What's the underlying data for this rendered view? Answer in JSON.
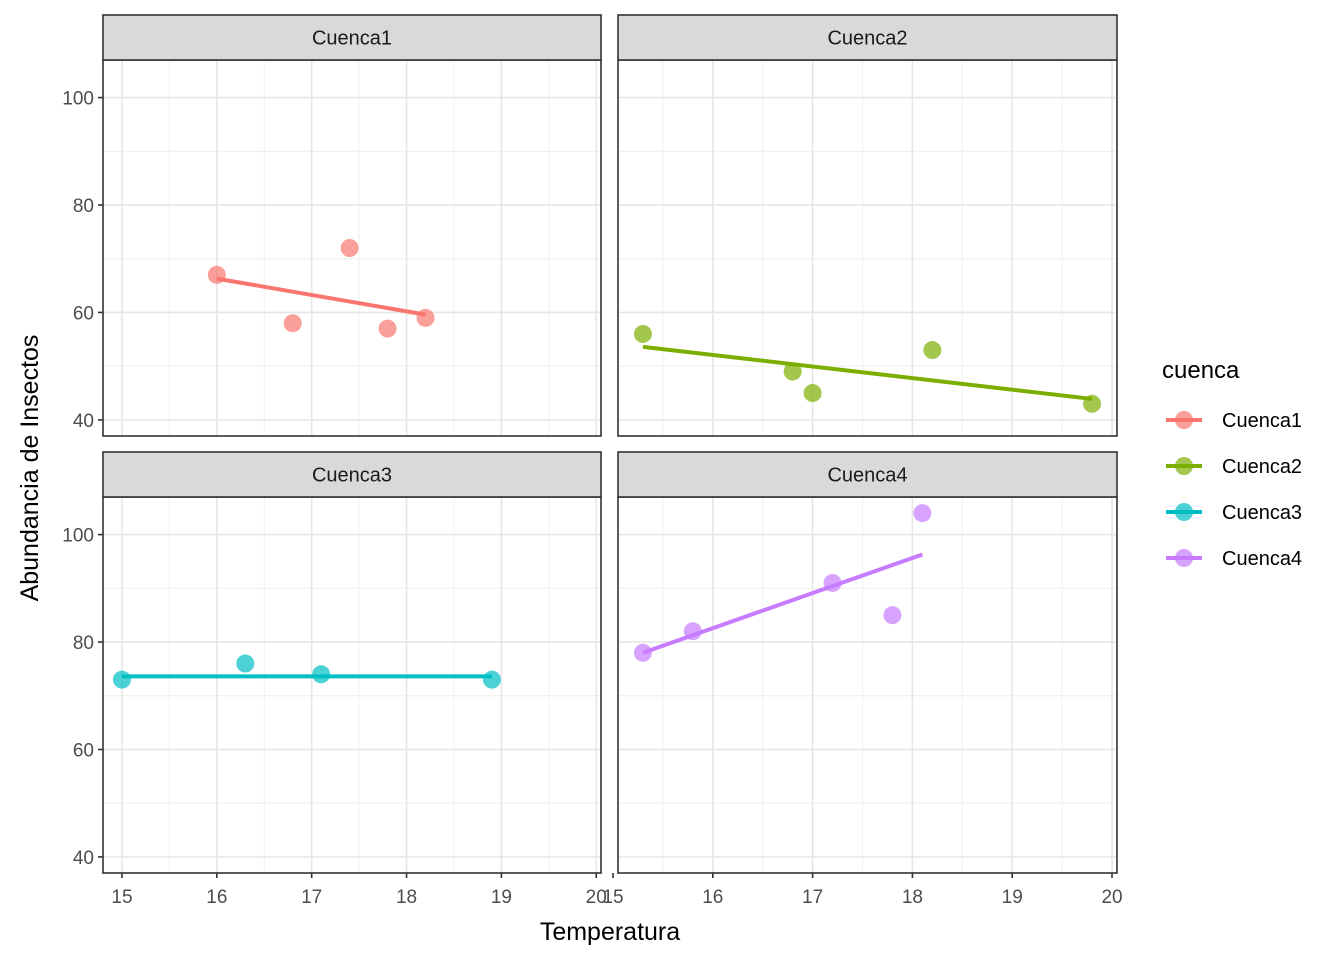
{
  "chart_data": {
    "type": "scatter",
    "facet_by": "cuenca",
    "xlabel": "Temperatura",
    "ylabel": "Abundancia de Insectos",
    "ylim": [
      37,
      107
    ],
    "yticks": [
      40,
      60,
      80,
      100
    ],
    "legend": {
      "title": "cuenca",
      "position": "right"
    },
    "grid": true,
    "panels": [
      {
        "name": "Cuenca1",
        "color": "#F8766D",
        "xlim": [
          14.8,
          20.05
        ],
        "xticks": [
          15,
          16,
          17,
          18,
          19,
          20
        ],
        "points": [
          {
            "x": 16.0,
            "y": 67
          },
          {
            "x": 16.8,
            "y": 58
          },
          {
            "x": 17.4,
            "y": 72
          },
          {
            "x": 17.8,
            "y": 57
          },
          {
            "x": 18.2,
            "y": 59
          }
        ],
        "fit": {
          "x": [
            16.0,
            18.2
          ],
          "y": [
            66.3,
            59.6
          ]
        }
      },
      {
        "name": "Cuenca2",
        "color": "#7CAE00",
        "xlim": [
          15.05,
          20.05
        ],
        "xticks": [
          15,
          16,
          17,
          18,
          19,
          20
        ],
        "points": [
          {
            "x": 15.3,
            "y": 56
          },
          {
            "x": 16.8,
            "y": 49
          },
          {
            "x": 17.0,
            "y": 45
          },
          {
            "x": 18.2,
            "y": 53
          },
          {
            "x": 19.8,
            "y": 43
          }
        ],
        "fit": {
          "x": [
            15.3,
            19.8
          ],
          "y": [
            53.6,
            43.9
          ]
        }
      },
      {
        "name": "Cuenca3",
        "color": "#00BFC4",
        "xlim": [
          14.8,
          20.05
        ],
        "xticks": [
          15,
          16,
          17,
          18,
          19,
          20
        ],
        "points": [
          {
            "x": 15.0,
            "y": 73
          },
          {
            "x": 16.3,
            "y": 76
          },
          {
            "x": 17.1,
            "y": 74
          },
          {
            "x": 18.9,
            "y": 73
          }
        ],
        "fit": {
          "x": [
            15.0,
            18.9
          ],
          "y": [
            73.6,
            73.6
          ]
        }
      },
      {
        "name": "Cuenca4",
        "color": "#C77CFF",
        "xlim": [
          15.05,
          20.05
        ],
        "xticks": [
          15,
          16,
          17,
          18,
          19,
          20
        ],
        "points": [
          {
            "x": 15.3,
            "y": 78
          },
          {
            "x": 15.8,
            "y": 82
          },
          {
            "x": 17.2,
            "y": 91
          },
          {
            "x": 17.8,
            "y": 85
          },
          {
            "x": 18.1,
            "y": 104
          }
        ],
        "fit": {
          "x": [
            15.3,
            18.1
          ],
          "y": [
            78.0,
            96.3
          ]
        }
      }
    ]
  }
}
